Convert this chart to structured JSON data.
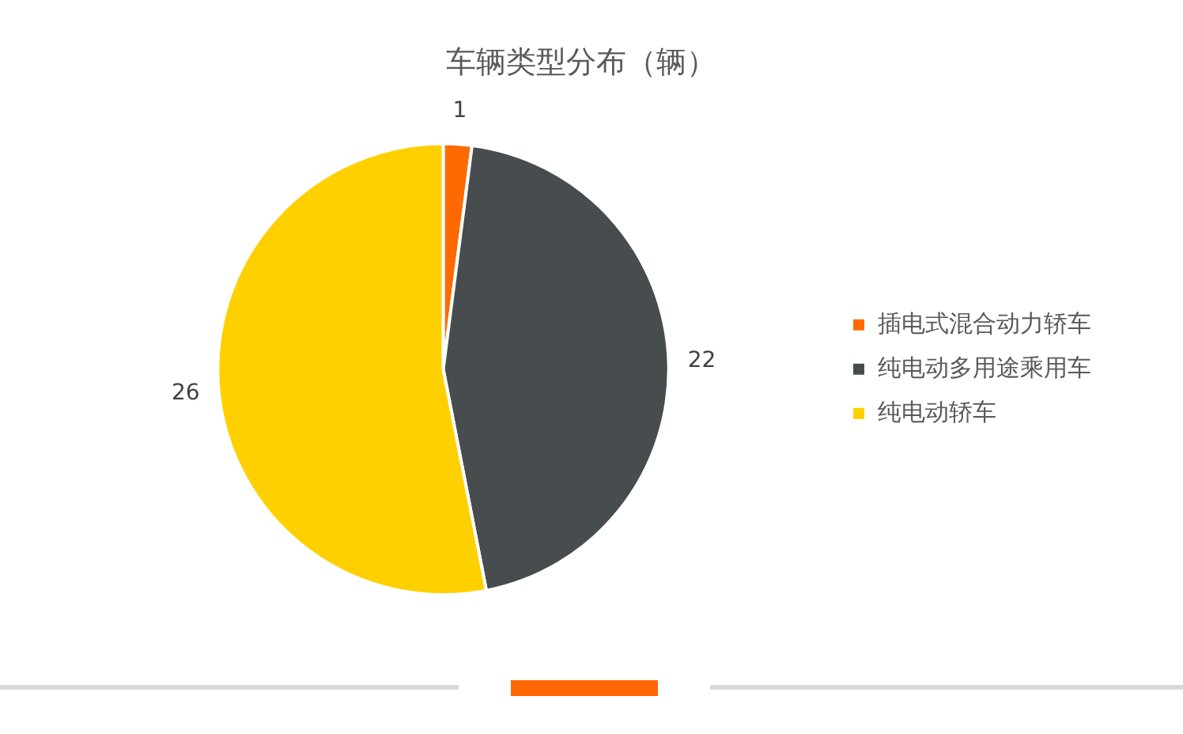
{
  "chart_data": {
    "type": "pie",
    "title": "车辆类型分布（辆）",
    "categories": [
      "插电式混合动力轿车",
      "纯电动多用途乘用车",
      "纯电动轿车"
    ],
    "values": [
      1,
      22,
      26
    ],
    "colors": [
      "#ff6a00",
      "#474c4f",
      "#ffd000"
    ],
    "data_labels": true,
    "legend": "right"
  }
}
